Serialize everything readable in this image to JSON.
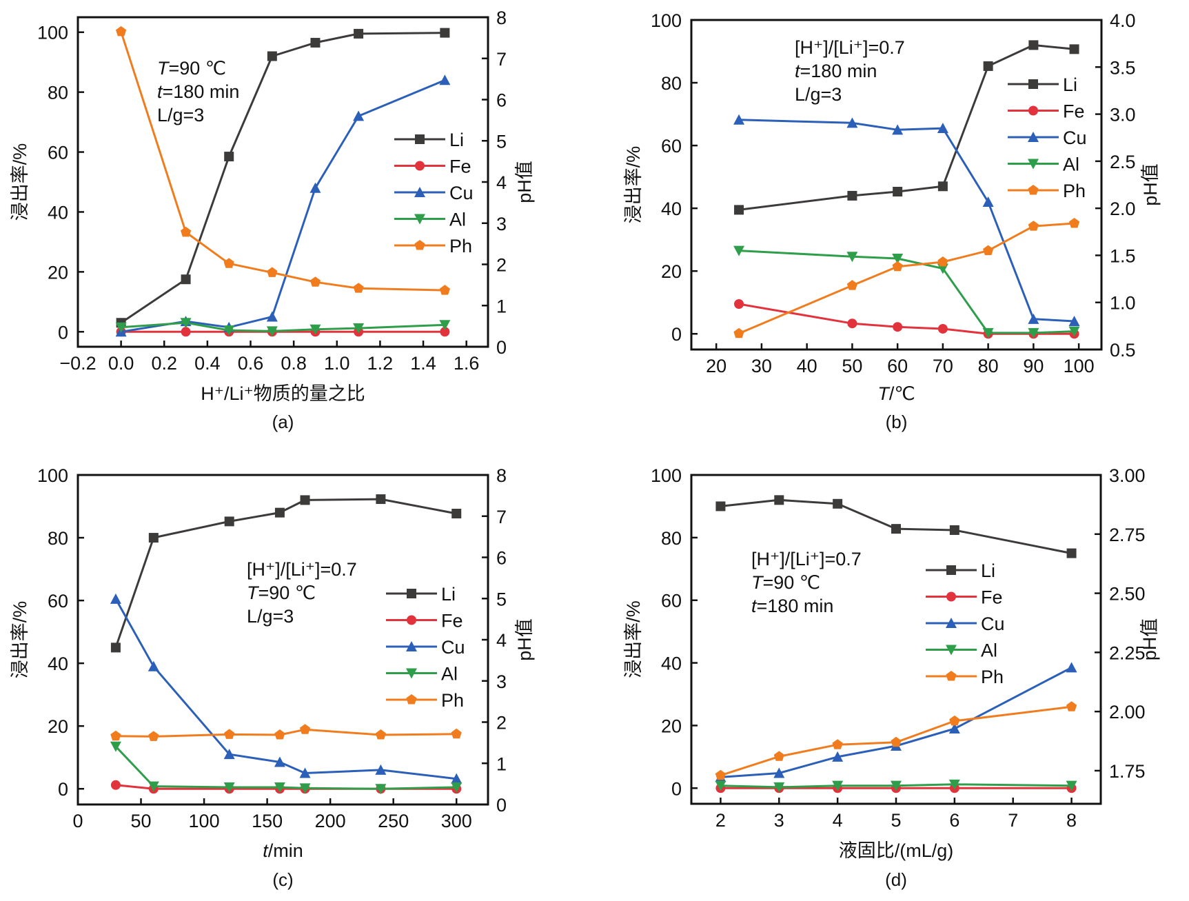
{
  "figure": {
    "left_axis_title": "浸出率/%",
    "right_axis_title": "pH值"
  },
  "chart_data": [
    {
      "id": "a",
      "type": "line",
      "panel_label": "(a)",
      "xlabel": "H⁺/Li⁺物质的量之比",
      "ylabel": "浸出率/%",
      "y2label": "pH值",
      "xlim": [
        -0.2,
        1.7
      ],
      "ylim": [
        -5,
        105
      ],
      "y2lim": [
        0,
        8
      ],
      "xticks": [
        -0.2,
        0.0,
        0.2,
        0.4,
        0.6,
        0.8,
        1.0,
        1.2,
        1.4,
        1.6
      ],
      "xtick_labels": [
        "−0.2",
        "0.0",
        "0.2",
        "0.4",
        "0.6",
        "0.8",
        "1.0",
        "1.2",
        "1.4",
        "1.6"
      ],
      "yticks": [
        0,
        20,
        40,
        60,
        80,
        100
      ],
      "ytick_labels": [
        "0",
        "20",
        "40",
        "60",
        "80",
        "100"
      ],
      "y2ticks": [
        0,
        1,
        2,
        3,
        4,
        5,
        6,
        7,
        8
      ],
      "y2tick_labels": [
        "0",
        "1",
        "2",
        "3",
        "4",
        "5",
        "6",
        "7",
        "8"
      ],
      "annotations": [
        {
          "italic": "T",
          "rest": "=90 ℃"
        },
        {
          "italic": "t",
          "rest": "=180 min"
        },
        {
          "italic": "",
          "rest": "L/g=3"
        }
      ],
      "annotation_position": "top-left",
      "legend_position": "center-right",
      "x": [
        0.0,
        0.3,
        0.5,
        0.7,
        0.9,
        1.1,
        1.5
      ],
      "series": [
        {
          "name": "Li",
          "axis": "left",
          "values": [
            3,
            17.5,
            58.5,
            92,
            96.5,
            99.5,
            99.8
          ]
        },
        {
          "name": "Fe",
          "axis": "left",
          "values": [
            0,
            0,
            0,
            0,
            0,
            0,
            0
          ]
        },
        {
          "name": "Cu",
          "axis": "left",
          "values": [
            0,
            3.5,
            1.5,
            5,
            48,
            72,
            84
          ]
        },
        {
          "name": "Al",
          "axis": "left",
          "values": [
            1.5,
            3,
            0.5,
            0.2,
            0.8,
            1.2,
            2.3
          ]
        },
        {
          "name": "Ph",
          "axis": "right",
          "values": [
            7.65,
            2.78,
            2.02,
            1.8,
            1.57,
            1.42,
            1.37
          ]
        }
      ]
    },
    {
      "id": "b",
      "type": "line",
      "panel_label": "(b)",
      "xlabel_italic": "T",
      "xlabel": "/℃",
      "ylabel": "浸出率/%",
      "y2label": "pH值",
      "xlim": [
        14.5,
        105
      ],
      "ylim": [
        -5,
        100
      ],
      "y2lim": [
        0.5,
        4.0
      ],
      "xticks": [
        20,
        30,
        40,
        50,
        60,
        70,
        80,
        90,
        100
      ],
      "xtick_labels": [
        "20",
        "30",
        "40",
        "50",
        "60",
        "70",
        "80",
        "90",
        "100"
      ],
      "yticks": [
        0,
        20,
        40,
        60,
        80,
        100
      ],
      "ytick_labels": [
        "0",
        "20",
        "40",
        "60",
        "80",
        "100"
      ],
      "y2ticks": [
        0.5,
        1.0,
        1.5,
        2.0,
        2.5,
        3.0,
        3.5,
        4.0
      ],
      "y2tick_labels": [
        "0.5",
        "1.0",
        "1.5",
        "2.0",
        "2.5",
        "3.0",
        "3.5",
        "4.0"
      ],
      "annotations": [
        {
          "italic": "",
          "rest": "[H⁺]/[Li⁺]=0.7"
        },
        {
          "italic": "t",
          "rest": "=180 min"
        },
        {
          "italic": "",
          "rest": "L/g=3"
        }
      ],
      "annotation_position": "top-left",
      "legend_position": "top-right",
      "x": [
        25,
        50,
        60,
        70,
        80,
        90,
        99
      ],
      "series": [
        {
          "name": "Li",
          "axis": "left",
          "values": [
            39.5,
            44,
            45.3,
            47,
            85.3,
            92,
            90.7
          ]
        },
        {
          "name": "Fe",
          "axis": "left",
          "values": [
            9.5,
            3.3,
            2.2,
            1.6,
            0,
            0,
            0
          ]
        },
        {
          "name": "Cu",
          "axis": "left",
          "values": [
            68.2,
            67.2,
            65,
            65.5,
            42,
            4.7,
            4
          ]
        },
        {
          "name": "Al",
          "axis": "left",
          "values": [
            26.5,
            24.6,
            24,
            20.8,
            0.3,
            0.3,
            0.8
          ]
        },
        {
          "name": "Ph",
          "axis": "right",
          "values": [
            0.67,
            1.18,
            1.38,
            1.43,
            1.55,
            1.81,
            1.84
          ]
        }
      ]
    },
    {
      "id": "c",
      "type": "line",
      "panel_label": "(c)",
      "xlabel_italic": "t",
      "xlabel": "/min",
      "ylabel": "浸出率/%",
      "y2label": "pH值",
      "xlim": [
        0,
        325
      ],
      "ylim": [
        -5,
        100
      ],
      "y2lim": [
        0,
        8
      ],
      "xticks": [
        0,
        50,
        100,
        150,
        200,
        250,
        300
      ],
      "xtick_labels": [
        "0",
        "50",
        "100",
        "150",
        "200",
        "250",
        "300"
      ],
      "yticks": [
        0,
        20,
        40,
        60,
        80,
        100
      ],
      "ytick_labels": [
        "0",
        "20",
        "40",
        "60",
        "80",
        "100"
      ],
      "y2ticks": [
        0,
        1,
        2,
        3,
        4,
        5,
        6,
        7,
        8
      ],
      "y2tick_labels": [
        "0",
        "1",
        "2",
        "3",
        "4",
        "5",
        "6",
        "7",
        "8"
      ],
      "annotations": [
        {
          "italic": "",
          "rest": "[H⁺]/[Li⁺]=0.7"
        },
        {
          "italic": "T",
          "rest": "=90 ℃"
        },
        {
          "italic": "",
          "rest": "L/g=3"
        }
      ],
      "annotation_position": "center",
      "legend_position": "center-right",
      "x": [
        30,
        60,
        120,
        160,
        180,
        240,
        300
      ],
      "series": [
        {
          "name": "Li",
          "axis": "left",
          "values": [
            45,
            80,
            85.2,
            88,
            92,
            92.3,
            87.7
          ]
        },
        {
          "name": "Fe",
          "axis": "left",
          "values": [
            1.2,
            0,
            0,
            0,
            0,
            0,
            0
          ]
        },
        {
          "name": "Cu",
          "axis": "left",
          "values": [
            60.5,
            39,
            11,
            8.5,
            5,
            6,
            3.2
          ]
        },
        {
          "name": "Al",
          "axis": "left",
          "values": [
            13.5,
            0.8,
            0.5,
            0.5,
            0.2,
            0,
            0.5
          ]
        },
        {
          "name": "Ph",
          "axis": "right",
          "values": [
            1.66,
            1.65,
            1.7,
            1.69,
            1.82,
            1.69,
            1.71
          ]
        }
      ]
    },
    {
      "id": "d",
      "type": "line",
      "panel_label": "(d)",
      "xlabel": "液固比/(mL/g)",
      "ylabel": "浸出率/%",
      "y2label": "pH值",
      "xlim": [
        1.5,
        8.5
      ],
      "ylim": [
        -5,
        100
      ],
      "y2lim": [
        1.61,
        3.0
      ],
      "xticks": [
        2,
        3,
        4,
        5,
        6,
        7,
        8
      ],
      "xtick_labels": [
        "2",
        "3",
        "4",
        "5",
        "6",
        "7",
        "8"
      ],
      "yticks": [
        0,
        20,
        40,
        60,
        80,
        100
      ],
      "ytick_labels": [
        "0",
        "20",
        "40",
        "60",
        "80",
        "100"
      ],
      "y2ticks": [
        1.75,
        2.0,
        2.25,
        2.5,
        2.75,
        3.0
      ],
      "y2tick_labels": [
        "1.75",
        "2.00",
        "2.25",
        "2.50",
        "2.75",
        "3.00"
      ],
      "annotations": [
        {
          "italic": "",
          "rest": "[H⁺]/[Li⁺]=0.7"
        },
        {
          "italic": "T",
          "rest": "=90 ℃"
        },
        {
          "italic": "t",
          "rest": "=180 min"
        }
      ],
      "annotation_position": "top-left",
      "legend_position": "center-right",
      "x": [
        2,
        3,
        4,
        5,
        6,
        8
      ],
      "series": [
        {
          "name": "Li",
          "axis": "left",
          "values": [
            90,
            92,
            90.8,
            82.8,
            82.4,
            75
          ]
        },
        {
          "name": "Fe",
          "axis": "left",
          "values": [
            0,
            0,
            0,
            0,
            0,
            0
          ]
        },
        {
          "name": "Cu",
          "axis": "left",
          "values": [
            3.5,
            4.8,
            10,
            13.5,
            19,
            38.5
          ]
        },
        {
          "name": "Al",
          "axis": "left",
          "values": [
            0.8,
            0.3,
            0.8,
            0.8,
            1.2,
            0.8
          ]
        },
        {
          "name": "Ph",
          "axis": "right",
          "values": [
            1.73,
            1.81,
            1.86,
            1.87,
            1.96,
            2.02
          ]
        }
      ]
    }
  ],
  "series_styles": {
    "Li": {
      "color": "#3d3a3a",
      "marker": "square"
    },
    "Fe": {
      "color": "#e2323c",
      "marker": "circle"
    },
    "Cu": {
      "color": "#2b5fb8",
      "marker": "triangle-up"
    },
    "Al": {
      "color": "#2e9e4a",
      "marker": "triangle-down"
    },
    "Ph": {
      "color": "#f07c1e",
      "marker": "pentagon"
    }
  }
}
